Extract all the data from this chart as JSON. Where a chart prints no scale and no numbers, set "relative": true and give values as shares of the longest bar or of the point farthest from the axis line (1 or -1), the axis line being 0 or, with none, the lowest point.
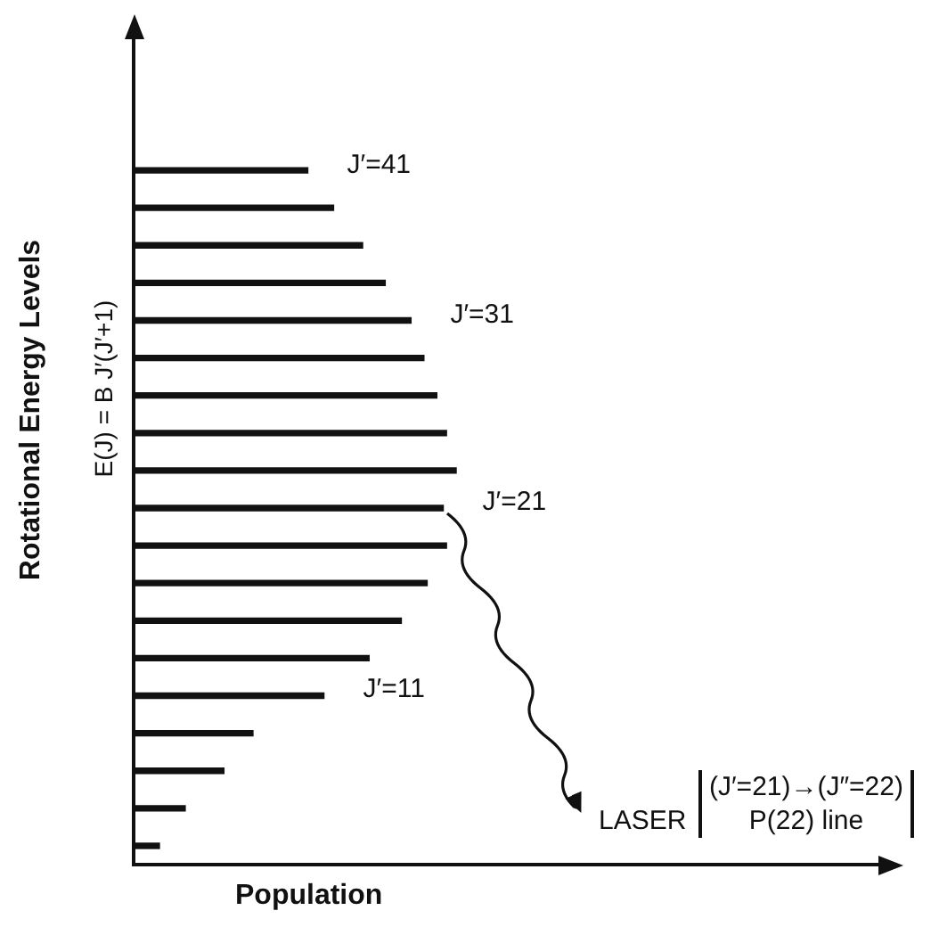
{
  "chart_data": {
    "type": "bar",
    "orientation": "horizontal",
    "relative": true,
    "xlabel": "Population",
    "ylabel": "Rotational Energy Levels",
    "color": "#111111",
    "legend": false,
    "categories": [
      null,
      null,
      null,
      null,
      null,
      null,
      null,
      null,
      null,
      null,
      null,
      null,
      null,
      null,
      null,
      null,
      null,
      null,
      null
    ],
    "values": [
      0.54,
      0.62,
      0.71,
      0.78,
      0.86,
      0.9,
      0.94,
      0.97,
      1,
      0.96,
      0.97,
      0.91,
      0.83,
      0.73,
      0.59,
      0.37,
      0.28,
      0.16,
      0.08
    ],
    "annotations": [
      "E(J) = B J′(J′+1)",
      "LASER",
      "(J′=21)→(J″=22)\nP(22) line",
      "J′=41",
      "J′=31",
      "J′=21",
      "J′=11"
    ]
  }
}
